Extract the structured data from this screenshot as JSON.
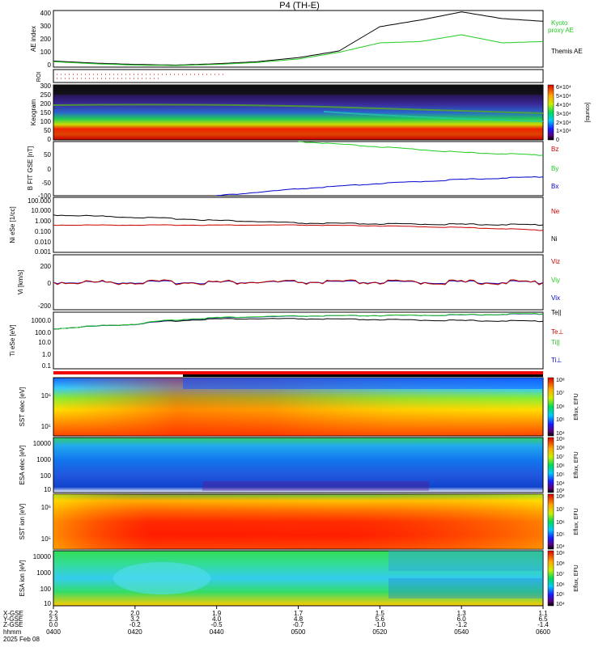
{
  "title": "P4 (TH-E)",
  "colors": {
    "kyoto": "#22cc22",
    "themis": "#000000",
    "bz": "#cc0000",
    "by": "#22cc22",
    "bx": "#0000cc",
    "ne": "#cc0000",
    "ni": "#000000",
    "teperp": "#cc0000",
    "tipara": "#22cc22",
    "tiperp": "#0000cc"
  },
  "time_axis": {
    "ticks": [
      "0400",
      "0420",
      "0440",
      "0500",
      "0520",
      "0540",
      "0600"
    ],
    "x_gse": [
      "2.2",
      "2.0",
      "1.9",
      "1.7",
      "1.5",
      "1.3",
      "1.1"
    ],
    "y_gse": [
      "2.3",
      "3.2",
      "4.0",
      "4.8",
      "5.6",
      "6.0",
      "6.5"
    ],
    "z_gse": [
      "0.0",
      "-0.2",
      "-0.5",
      "-0.7",
      "-1.0",
      "-1.2",
      "-1.4"
    ],
    "row_labels": [
      "X-GSE",
      "Y-GSE",
      "Z-GSE",
      "hhmm",
      "2025 Feb 08"
    ]
  },
  "panels": [
    {
      "id": "ae",
      "ylabel": "AE index",
      "ticks": [
        "400",
        "300",
        "200",
        "100",
        "0"
      ],
      "legend": [
        {
          "text": "Kyoto",
          "color": "kyoto"
        },
        {
          "text": "proxy AE",
          "color": "kyoto"
        },
        {
          "text": "Themis AE",
          "color": "themis"
        }
      ]
    },
    {
      "id": "roi",
      "ylabel": "ROI",
      "ticks": []
    },
    {
      "id": "keogram",
      "ylabel": "Keogram",
      "ticks": [
        "300",
        "250",
        "200",
        "150",
        "100",
        "50",
        "0"
      ],
      "colorbar": {
        "ticks": [
          "6×10⁴",
          "5×10⁴",
          "4×10⁴",
          "3×10⁴",
          "2×10⁴",
          "1×10⁴",
          "0"
        ],
        "label": "[counts]"
      }
    },
    {
      "id": "bfield",
      "ylabel": "B FIT GSE [nT]",
      "ticks": [
        "50",
        "0",
        "-50",
        "-100"
      ],
      "legend": [
        {
          "text": "Bz",
          "color": "bz"
        },
        {
          "text": "By",
          "color": "by"
        },
        {
          "text": "Bx",
          "color": "bx"
        }
      ]
    },
    {
      "id": "density",
      "ylabel": "Ni eSe [1/cc]",
      "ticks": [
        "100.000",
        "10.000",
        "1.000",
        "0.100",
        "0.010",
        "0.001"
      ],
      "legend": [
        {
          "text": "Ne",
          "color": "ne"
        },
        {
          "text": "Ni",
          "color": "ni"
        }
      ]
    },
    {
      "id": "velocity",
      "ylabel": "Vi [km/s]",
      "ticks": [
        "200",
        "0",
        "-200"
      ],
      "legend": [
        {
          "text": "Viz",
          "color": "bz"
        },
        {
          "text": "Viy",
          "color": "by"
        },
        {
          "text": "Vix",
          "color": "bx"
        }
      ]
    },
    {
      "id": "temperature",
      "ylabel": "Ti eSe [eV]",
      "ticks": [
        "1000.0",
        "100.0",
        "10.0",
        "1.0",
        "0.1"
      ],
      "legend": [
        {
          "text": "Te||",
          "color": "themis"
        },
        {
          "text": "Te⊥",
          "color": "teperp"
        },
        {
          "text": "Ti||",
          "color": "tipara"
        },
        {
          "text": "Ti⊥",
          "color": "tiperp"
        }
      ]
    },
    {
      "id": "sst_e",
      "ylabel": "SST elec [eV]",
      "ticks": [
        "10⁶",
        "10⁵"
      ],
      "colorbar": {
        "ticks": [
          "10⁸",
          "10⁷",
          "10⁶",
          "10⁵",
          "10⁴"
        ],
        "label": "Eflux, EFU"
      }
    },
    {
      "id": "esa_e",
      "ylabel": "ESA elec [eV]",
      "ticks": [
        "10000",
        "1000",
        "100",
        "10"
      ],
      "colorbar": {
        "ticks": [
          "10⁹",
          "10⁸",
          "10⁷",
          "10⁶",
          "10⁵",
          "10⁴",
          "10³"
        ],
        "label": "Eflux, EFU"
      }
    },
    {
      "id": "sst_i",
      "ylabel": "SST ion [eV]",
      "ticks": [
        "10⁶",
        "10⁵"
      ],
      "colorbar": {
        "ticks": [
          "10⁸",
          "10⁷",
          "10⁶",
          "10⁵",
          "10⁴"
        ],
        "label": "Eflux, EFU"
      }
    },
    {
      "id": "esa_i",
      "ylabel": "ESA ion [eV]",
      "ticks": [
        "10000",
        "1000",
        "100",
        "10"
      ],
      "colorbar": {
        "ticks": [
          "10⁹",
          "10⁸",
          "10⁷",
          "10⁶",
          "10⁵",
          "10⁴"
        ],
        "label": "Eflux, EFU"
      }
    }
  ],
  "chart_data": [
    {
      "type": "line",
      "panel": "ae",
      "xlabel": "",
      "ylabel": "AE index",
      "ylim": [
        0,
        420
      ],
      "x": [
        "0400",
        "0410",
        "0420",
        "0430",
        "0440",
        "0450",
        "0500",
        "0510",
        "0520",
        "0530",
        "0540",
        "0550",
        "0600"
      ],
      "series": [
        {
          "name": "Themis AE",
          "color": "themis",
          "values": [
            45,
            30,
            20,
            15,
            25,
            40,
            70,
            120,
            300,
            350,
            410,
            360,
            340
          ]
        },
        {
          "name": "Kyoto proxy AE",
          "color": "kyoto",
          "values": [
            40,
            25,
            15,
            12,
            20,
            35,
            60,
            110,
            180,
            190,
            240,
            180,
            190
          ]
        }
      ]
    },
    {
      "type": "line",
      "panel": "bfield",
      "ylabel": "B FIT GSE [nT]",
      "ylim": [
        -100,
        100
      ],
      "x": [
        "0400",
        "0420",
        "0440",
        "0500",
        "0520",
        "0540",
        "0600"
      ],
      "series": [
        {
          "name": "Bz",
          "color": "bz",
          "values": [
            null,
            null,
            null,
            null,
            null,
            null,
            null
          ]
        },
        {
          "name": "By",
          "color": "by",
          "values": [
            null,
            null,
            null,
            100,
            80,
            60,
            50
          ]
        },
        {
          "name": "Bx",
          "color": "bx",
          "values": [
            null,
            null,
            -100,
            -75,
            -55,
            -40,
            -30
          ]
        }
      ]
    },
    {
      "type": "line",
      "panel": "density",
      "ylabel": "Ni eSe [1/cc]",
      "ylim": [
        0.001,
        100
      ],
      "scale": "log",
      "x": [
        "0400",
        "0420",
        "0440",
        "0500",
        "0520",
        "0540",
        "0600"
      ],
      "series": [
        {
          "name": "Ni",
          "color": "ni",
          "values": [
            2.5,
            1.5,
            0.8,
            0.45,
            0.38,
            0.35,
            0.32
          ]
        },
        {
          "name": "Ne",
          "color": "ne",
          "values": [
            0.3,
            0.3,
            0.3,
            0.3,
            0.25,
            0.18,
            0.1
          ]
        }
      ]
    },
    {
      "type": "line",
      "panel": "velocity",
      "ylabel": "Vi [km/s]",
      "ylim": [
        -250,
        250
      ],
      "x": [
        "0400",
        "0420",
        "0440",
        "0500",
        "0520",
        "0540",
        "0600"
      ],
      "series": [
        {
          "name": "Viz",
          "color": "bz",
          "values": [
            0,
            0,
            0,
            0,
            0,
            0,
            0
          ]
        },
        {
          "name": "Viy",
          "color": "by",
          "values": [
            0,
            0,
            0,
            0,
            0,
            0,
            0
          ]
        },
        {
          "name": "Vix",
          "color": "bx",
          "values": [
            0,
            0,
            0,
            0,
            0,
            0,
            0
          ]
        }
      ]
    },
    {
      "type": "line",
      "panel": "temperature",
      "ylabel": "Ti eSe [eV]",
      "ylim": [
        0.05,
        2500
      ],
      "scale": "log",
      "x": [
        "0400",
        "0420",
        "0440",
        "0500",
        "0520",
        "0540",
        "0600"
      ],
      "series": [
        {
          "name": "Te||",
          "color": "themis",
          "values": [
            100,
            250,
            700,
            700,
            600,
            500,
            450
          ]
        },
        {
          "name": "Ti||",
          "color": "tipara",
          "values": [
            100,
            250,
            900,
            1200,
            1300,
            1500,
            1900
          ]
        },
        {
          "name": "Ti⊥",
          "color": "tiperp",
          "values": [
            100,
            240,
            850,
            1150,
            1300,
            1450,
            1800
          ]
        }
      ]
    }
  ]
}
